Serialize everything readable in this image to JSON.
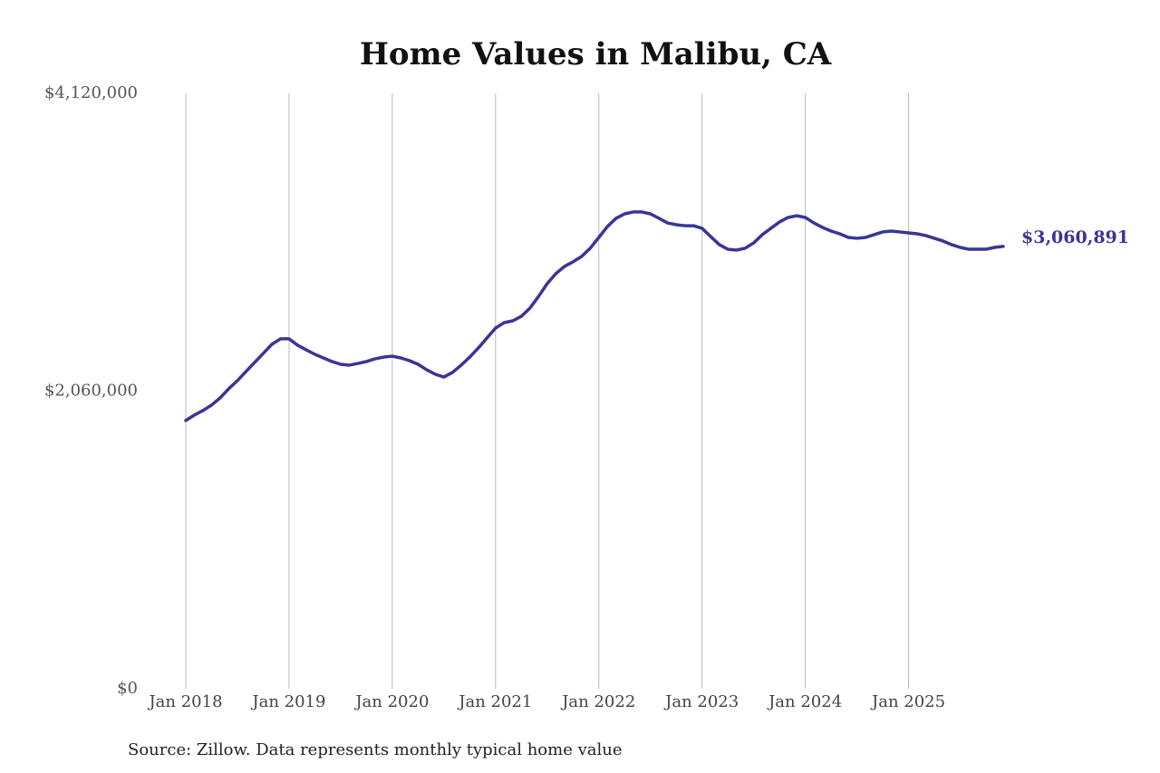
{
  "chart_data": {
    "type": "line",
    "title": "Home Values in Malibu, CA",
    "source": "Source: Zillow. Data represents monthly typical home value",
    "color": "#3a3596",
    "grid": "x",
    "x": [
      "2018-01",
      "2018-02",
      "2018-03",
      "2018-04",
      "2018-05",
      "2018-06",
      "2018-07",
      "2018-08",
      "2018-09",
      "2018-10",
      "2018-11",
      "2018-12",
      "2019-01",
      "2019-02",
      "2019-03",
      "2019-04",
      "2019-05",
      "2019-06",
      "2019-07",
      "2019-08",
      "2019-09",
      "2019-10",
      "2019-11",
      "2019-12",
      "2020-01",
      "2020-02",
      "2020-03",
      "2020-04",
      "2020-05",
      "2020-06",
      "2020-07",
      "2020-08",
      "2020-09",
      "2020-10",
      "2020-11",
      "2020-12",
      "2021-01",
      "2021-02",
      "2021-03",
      "2021-04",
      "2021-05",
      "2021-06",
      "2021-07",
      "2021-08",
      "2021-09",
      "2021-10",
      "2021-11",
      "2021-12",
      "2022-01",
      "2022-02",
      "2022-03",
      "2022-04",
      "2022-05",
      "2022-06",
      "2022-07",
      "2022-08",
      "2022-09",
      "2022-10",
      "2022-11",
      "2022-12",
      "2023-01",
      "2023-02",
      "2023-03",
      "2023-04",
      "2023-05",
      "2023-06",
      "2023-07",
      "2023-08",
      "2023-09",
      "2023-10",
      "2023-11",
      "2023-12",
      "2024-01",
      "2024-02",
      "2024-03",
      "2024-04",
      "2024-05",
      "2024-06",
      "2024-07",
      "2024-08",
      "2024-09",
      "2024-10",
      "2024-11",
      "2024-12",
      "2025-01",
      "2025-02",
      "2025-03",
      "2025-04",
      "2025-05",
      "2025-06",
      "2025-07",
      "2025-08",
      "2025-09",
      "2025-10",
      "2025-11",
      "2025-12"
    ],
    "values": [
      1856000,
      1894000,
      1925000,
      1963000,
      2013000,
      2076000,
      2132000,
      2195000,
      2258000,
      2320000,
      2383000,
      2421000,
      2421000,
      2377000,
      2345000,
      2314000,
      2289000,
      2264000,
      2245000,
      2239000,
      2251000,
      2264000,
      2283000,
      2295000,
      2301000,
      2289000,
      2270000,
      2245000,
      2207000,
      2176000,
      2157000,
      2189000,
      2239000,
      2295000,
      2358000,
      2427000,
      2496000,
      2533000,
      2546000,
      2577000,
      2634000,
      2715000,
      2803000,
      2872000,
      2922000,
      2954000,
      2991000,
      3048000,
      3123000,
      3198000,
      3255000,
      3286000,
      3299000,
      3299000,
      3286000,
      3255000,
      3223000,
      3211000,
      3204000,
      3204000,
      3186000,
      3129000,
      3073000,
      3041000,
      3035000,
      3048000,
      3085000,
      3142000,
      3186000,
      3230000,
      3261000,
      3273000,
      3261000,
      3223000,
      3192000,
      3167000,
      3148000,
      3123000,
      3117000,
      3123000,
      3142000,
      3161000,
      3167000,
      3161000,
      3154000,
      3148000,
      3136000,
      3117000,
      3098000,
      3073000,
      3054000,
      3041000,
      3041000,
      3041000,
      3054000,
      3060891
    ],
    "value_labels": [
      null,
      null,
      null,
      null,
      null,
      null,
      null,
      null,
      null,
      null,
      null,
      null,
      null,
      null,
      null,
      null,
      null,
      null,
      null,
      null,
      null,
      null,
      null,
      null,
      null,
      null,
      null,
      null,
      null,
      null,
      null,
      null,
      null,
      null,
      null,
      null,
      null,
      null,
      null,
      null,
      null,
      null,
      null,
      null,
      null,
      null,
      null,
      null,
      null,
      null,
      null,
      null,
      null,
      null,
      null,
      null,
      null,
      null,
      null,
      null,
      null,
      null,
      null,
      null,
      null,
      null,
      null,
      null,
      null,
      null,
      null,
      null,
      null,
      null,
      null,
      null,
      null,
      null,
      null,
      null,
      null,
      null,
      null,
      null,
      null,
      null,
      null,
      null,
      null,
      null,
      null,
      null,
      null,
      null,
      null,
      "$3,060,891"
    ],
    "xlim": [
      "2018-01",
      "2025-12"
    ],
    "xticks": [
      {
        "value": "2018-01",
        "label": "Jan 2018"
      },
      {
        "value": "2019-01",
        "label": "Jan 2019"
      },
      {
        "value": "2020-01",
        "label": "Jan 2020"
      },
      {
        "value": "2021-01",
        "label": "Jan 2021"
      },
      {
        "value": "2022-01",
        "label": "Jan 2022"
      },
      {
        "value": "2023-01",
        "label": "Jan 2023"
      },
      {
        "value": "2024-01",
        "label": "Jan 2024"
      },
      {
        "value": "2025-01",
        "label": "Jan 2025"
      }
    ],
    "ylim": [
      0,
      4120000
    ],
    "yticks": [
      {
        "value": 0,
        "label": "$0"
      },
      {
        "value": 2060000,
        "label": "$2,060,000"
      },
      {
        "value": 4120000,
        "label": "$4,120,000"
      }
    ]
  }
}
